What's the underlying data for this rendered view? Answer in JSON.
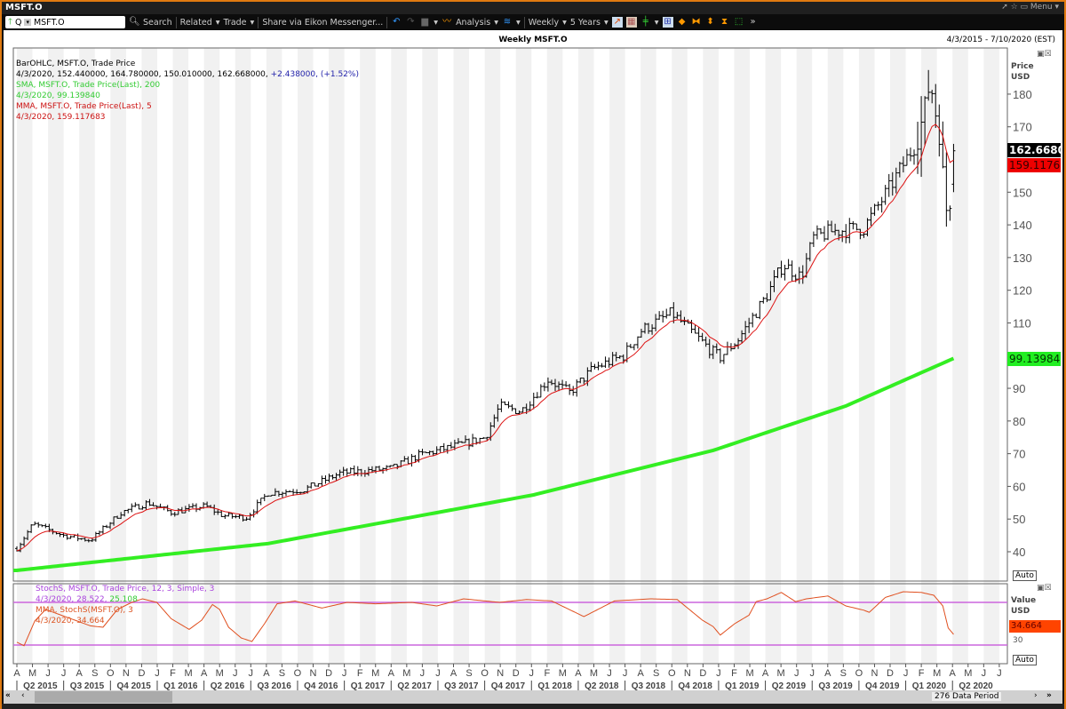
{
  "window": {
    "title": "MSFT.O",
    "menu_label": "Menu"
  },
  "toolbar": {
    "ric_value": "MSFT.O",
    "q_label": "Q",
    "search": "Search",
    "related": "Related",
    "trade": "Trade",
    "share": "Share via Eikon Messenger...",
    "analysis": "Analysis",
    "interval": "Weekly",
    "range": "5 Years"
  },
  "chart": {
    "title": "Weekly MSFT.O",
    "date_range": "4/3/2015 - 7/10/2020 (EST)",
    "axis_title": "Price",
    "axis_unit": "USD",
    "auto_label": "Auto",
    "last_price_label": "162.6680",
    "mma_label": "159.1176",
    "sma_label": "99.13984"
  },
  "legend": {
    "l1": "BarOHLC, MSFT.O, Trade Price",
    "l2a": "4/3/2020, 152.440000, 164.780000, 150.010000, 162.668000, ",
    "l2b": "+2.438000, (+1.52%)",
    "l3": "SMA, MSFT.O, Trade Price(Last),  200",
    "l4": "4/3/2020, 99.139840",
    "l5": "MMA, MSFT.O, Trade Price(Last),  5",
    "l6": "4/3/2020, 159.117683"
  },
  "stoch": {
    "l1": "StochS, MSFT.O, Trade Price,  12, 3, Simple, 3",
    "l2a": "4/3/2020, 28.522, ",
    "l2b": "25.108",
    "l3": "MMA, StochS(MSFT.O),  3",
    "l4": "4/3/2020, 34.664",
    "axis_title": "Value",
    "axis_unit": "USD",
    "value_label": "34.664",
    "tick_30": "30",
    "auto_label": "Auto"
  },
  "footer": {
    "data_period": "276 Data Period"
  },
  "colors": {
    "bars": "#000000",
    "sma": "#33ee22",
    "mma": "#dd1111",
    "stoch": "#e05020",
    "bands": "#cc66dd",
    "accent": "#e07a10"
  },
  "chart_data": {
    "type": "ohlc",
    "x_unit": "weeks since 4/3/2015",
    "weeks_total": 275,
    "ylim": [
      40,
      180
    ],
    "yticks": [
      40,
      50,
      60,
      70,
      80,
      90,
      100,
      110,
      120,
      130,
      140,
      150,
      160,
      170,
      180
    ],
    "close_waypoints": [
      [
        0,
        41
      ],
      [
        4.5,
        48.5
      ],
      [
        13,
        45
      ],
      [
        20.5,
        43.5
      ],
      [
        29,
        52
      ],
      [
        36.5,
        55
      ],
      [
        43,
        52
      ],
      [
        52.5,
        54
      ],
      [
        57.5,
        51
      ],
      [
        64,
        50.5
      ],
      [
        70,
        58
      ],
      [
        80,
        59
      ],
      [
        90,
        64
      ],
      [
        104.5,
        65.5
      ],
      [
        112,
        69.5
      ],
      [
        124.5,
        73
      ],
      [
        130.5,
        75
      ],
      [
        134.5,
        84.5
      ],
      [
        140.5,
        83
      ],
      [
        148,
        92.7
      ],
      [
        154,
        88.7
      ],
      [
        160.5,
        96
      ],
      [
        169,
        100
      ],
      [
        174,
        107.7
      ],
      [
        182.5,
        113
      ],
      [
        187.5,
        107.7
      ],
      [
        194,
        101
      ],
      [
        196,
        99.5
      ],
      [
        201,
        105
      ],
      [
        209,
        118.5
      ],
      [
        213.5,
        128
      ],
      [
        218.5,
        124
      ],
      [
        222,
        136
      ],
      [
        227,
        138
      ],
      [
        236,
        139
      ],
      [
        239.5,
        145
      ],
      [
        243,
        151
      ],
      [
        251,
        166
      ],
      [
        254.5,
        184
      ],
      [
        257,
        167.5
      ],
      [
        259.5,
        139
      ],
      [
        261,
        162.668
      ]
    ],
    "last_bar": {
      "date": "4/3/2020",
      "open": 152.44,
      "high": 164.78,
      "low": 150.01,
      "close": 162.668
    },
    "sma200_waypoints": [
      [
        0,
        34.3
      ],
      [
        70,
        42.5
      ],
      [
        144,
        57.4
      ],
      [
        194,
        71
      ],
      [
        231,
        84.6
      ],
      [
        261,
        99.14
      ]
    ],
    "stoch_ylim": [
      0,
      100
    ],
    "stoch_bands": [
      20,
      80
    ],
    "stoch_waypoints": [
      [
        0,
        24
      ],
      [
        2,
        19
      ],
      [
        5,
        54
      ],
      [
        8,
        70
      ],
      [
        20.5,
        47
      ],
      [
        24,
        45
      ],
      [
        28,
        70
      ],
      [
        32,
        80
      ],
      [
        35,
        85
      ],
      [
        39,
        80
      ],
      [
        43,
        57
      ],
      [
        48,
        42
      ],
      [
        51.5,
        55
      ],
      [
        54.5,
        77
      ],
      [
        56.5,
        70
      ],
      [
        59,
        45
      ],
      [
        62.5,
        30
      ],
      [
        65.5,
        25
      ],
      [
        69,
        50
      ],
      [
        72.5,
        78
      ],
      [
        77.5,
        82
      ],
      [
        85,
        72
      ],
      [
        92,
        80
      ],
      [
        100,
        78
      ],
      [
        110,
        80
      ],
      [
        117,
        75
      ],
      [
        124.5,
        85
      ],
      [
        134.5,
        80
      ],
      [
        142,
        84
      ],
      [
        149,
        82
      ],
      [
        158,
        60
      ],
      [
        166.5,
        82
      ],
      [
        176.5,
        85
      ],
      [
        184,
        84
      ],
      [
        191,
        55
      ],
      [
        194,
        46
      ],
      [
        196,
        34
      ],
      [
        200,
        50
      ],
      [
        204,
        62
      ],
      [
        206,
        81
      ],
      [
        209,
        85
      ],
      [
        213,
        94
      ],
      [
        217,
        81
      ],
      [
        220,
        85
      ],
      [
        226,
        89
      ],
      [
        231,
        75
      ],
      [
        236,
        69
      ],
      [
        237.5,
        66
      ],
      [
        242,
        87
      ],
      [
        247,
        95
      ],
      [
        252,
        94
      ],
      [
        255.5,
        90
      ],
      [
        258,
        75
      ],
      [
        259.5,
        44
      ],
      [
        261,
        35
      ]
    ],
    "month_labels": [
      "A",
      "M",
      "J",
      "J",
      "A",
      "S",
      "O",
      "N",
      "D",
      "J",
      "F",
      "M",
      "A",
      "M",
      "J",
      "J",
      "A",
      "S",
      "O",
      "N",
      "D",
      "J",
      "F",
      "M",
      "A",
      "M",
      "J",
      "J",
      "A",
      "S",
      "O",
      "N",
      "D",
      "J",
      "F",
      "M",
      "A",
      "M",
      "J",
      "J",
      "A",
      "S",
      "O",
      "N",
      "D",
      "J",
      "F",
      "M",
      "A",
      "M",
      "J",
      "J",
      "A",
      "S",
      "O",
      "N",
      "D",
      "J",
      "F",
      "M",
      "A",
      "M",
      "J",
      "J"
    ],
    "quarter_labels": [
      "Q2 2015",
      "Q3 2015",
      "Q4 2015",
      "Q1 2016",
      "Q2 2016",
      "Q3 2016",
      "Q4 2016",
      "Q1 2017",
      "Q2 2017",
      "Q3 2017",
      "Q4 2017",
      "Q1 2018",
      "Q2 2018",
      "Q3 2018",
      "Q4 2018",
      "Q1 2019",
      "Q2 2019",
      "Q3 2019",
      "Q4 2019",
      "Q1 2020",
      "Q2 2020"
    ]
  }
}
